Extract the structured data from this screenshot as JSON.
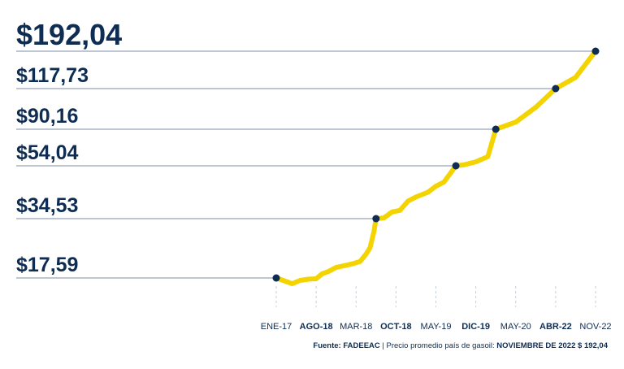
{
  "chart_data": {
    "type": "line",
    "x": [
      "ENE-17",
      "AGO-18",
      "MAR-18",
      "OCT-18",
      "MAY-19",
      "DIC-19",
      "MAY-20",
      "ABR-22",
      "NOV-22"
    ],
    "x_bold": [
      false,
      true,
      false,
      true,
      false,
      true,
      false,
      true,
      false
    ],
    "series": [
      {
        "values": [
          [
            0,
            17.59
          ],
          [
            0.4,
            16.2
          ],
          [
            0.5,
            16.6
          ],
          [
            0.6,
            17.0
          ],
          [
            0.8,
            17.3
          ],
          [
            1.0,
            17.4
          ],
          [
            1.15,
            18.8
          ],
          [
            1.3,
            19.4
          ],
          [
            1.5,
            20.6
          ],
          [
            1.7,
            21.1
          ],
          [
            1.9,
            21.6
          ],
          [
            2.1,
            22.3
          ],
          [
            2.25,
            24.4
          ],
          [
            2.35,
            26.2
          ],
          [
            2.45,
            31.0
          ],
          [
            2.5,
            34.53
          ],
          [
            2.7,
            34.8
          ],
          [
            2.9,
            37.0
          ],
          [
            3.1,
            37.6
          ],
          [
            3.3,
            41.0
          ],
          [
            3.5,
            42.5
          ],
          [
            3.8,
            44.3
          ],
          [
            4.0,
            46.5
          ],
          [
            4.2,
            48.0
          ],
          [
            4.5,
            54.04
          ],
          [
            4.7,
            55.0
          ],
          [
            5.0,
            58.0
          ],
          [
            5.3,
            63.0
          ],
          [
            5.5,
            90.16
          ],
          [
            6.0,
            95.0
          ],
          [
            6.5,
            105.0
          ],
          [
            7.0,
            117.73
          ],
          [
            7.5,
            140.0
          ],
          [
            8.0,
            192.04
          ]
        ]
      }
    ],
    "highlights": [
      {
        "index": 0,
        "label": "$17,59"
      },
      {
        "index": 15,
        "label": "$34,53"
      },
      {
        "index": 24,
        "label": "$54,04"
      },
      {
        "index": 28,
        "label": "$90,16"
      },
      {
        "index": 31,
        "label": "$117,73"
      },
      {
        "index": 33,
        "label": "$192,04"
      }
    ],
    "line_color": "#f3d300",
    "marker_color": "#0f2d52",
    "label_color": "#0f2d52",
    "top_label_color": "#29abe2",
    "grid": false
  },
  "footer": {
    "source_prefix": "Fuente: FADEEAC",
    "source_text": " | Precio promedio país de gasoil: ",
    "source_bold": "NOVIEMBRE DE 2022 $ 192,04"
  }
}
